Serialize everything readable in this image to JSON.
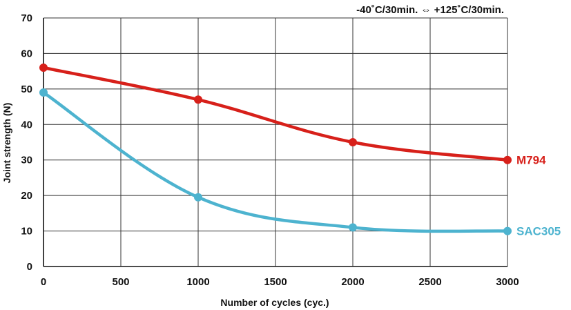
{
  "chart_data": {
    "type": "line",
    "title": "",
    "annotation": "-40˚C/30min. ⇔ +125˚C/30min.",
    "xlabel": "Number of cycles (cyc.)",
    "ylabel": "Joint strength (N)",
    "xlim": [
      0,
      3000
    ],
    "ylim": [
      0,
      70
    ],
    "xticks": [
      0,
      500,
      1000,
      1500,
      2000,
      2500,
      3000
    ],
    "yticks": [
      0,
      10,
      20,
      30,
      40,
      50,
      60,
      70
    ],
    "grid": true,
    "legend": "inline labels at line ends",
    "series": [
      {
        "name": "M794",
        "color": "#d7201a",
        "x": [
          0,
          1000,
          2000,
          3000
        ],
        "y": [
          56,
          47,
          35,
          30
        ]
      },
      {
        "name": "SAC305",
        "color": "#4db3cf",
        "x": [
          0,
          1000,
          2000,
          3000
        ],
        "y": [
          49,
          19.5,
          11,
          10
        ]
      }
    ]
  }
}
